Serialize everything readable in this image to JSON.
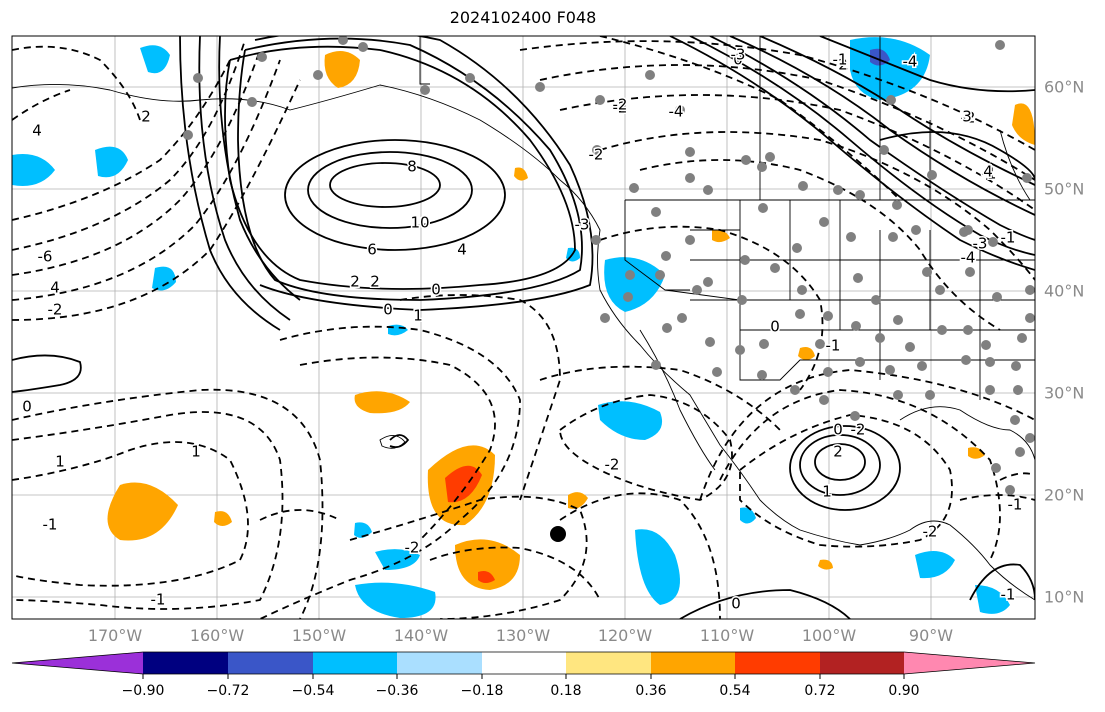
{
  "title": "2024102400 F048",
  "lon_labels": [
    "170°W",
    "160°W",
    "150°W",
    "140°W",
    "130°W",
    "120°W",
    "110°W",
    "100°W",
    "90°W"
  ],
  "lat_labels": [
    "60°N",
    "50°N",
    "40°N",
    "30°N",
    "20°N",
    "10°N"
  ],
  "colorbar": {
    "ticks": [
      "−0.90",
      "−0.72",
      "−0.54",
      "−0.36",
      "−0.18",
      "0.18",
      "0.36",
      "0.54",
      "0.72",
      "0.90"
    ],
    "colors": [
      "#9b30d9",
      "#000080",
      "#3a56c8",
      "#00bfff",
      "#aadfff",
      "#ffffff",
      "#ffe680",
      "#ffa500",
      "#ff3c00",
      "#b22222",
      "#ff88b0"
    ]
  },
  "contour_labels": [
    "8",
    "10",
    "6",
    "4",
    "2",
    "2",
    "0",
    "0",
    "1",
    "4",
    "-2",
    "-6",
    "4",
    "2",
    "2",
    "-2",
    "0",
    "-2",
    "-4",
    "-3",
    "-2",
    "-1",
    "-1",
    "-4",
    "3",
    "4",
    "-3",
    "-2",
    "2",
    "0",
    "1",
    "-2",
    "-1",
    "0",
    "1",
    "1",
    "-1",
    "-1",
    "-2",
    "0",
    "0",
    "-1",
    "-2",
    "-1",
    "-1",
    "-4",
    "-3",
    "-2"
  ],
  "colors": {
    "positive_contour": "#000000",
    "negative_contour": "#000000",
    "station_dot": "#808080",
    "grid": "#b0b0b0",
    "tick_label": "#8a8a8a"
  }
}
